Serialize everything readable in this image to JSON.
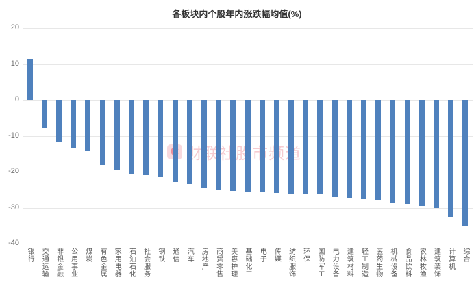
{
  "title": "各板块内个股年内涨跌幅均值(%)",
  "watermark": {
    "logo_letter": "C",
    "text": "财联社股市频道"
  },
  "colors": {
    "bar": "#4f81bd",
    "grid": "#e7e7e7",
    "y_tick_label": "#737373",
    "category_label": "#595959",
    "title": "#333333",
    "watermark_pink": "#e05264"
  },
  "chart_data": {
    "type": "bar",
    "title": "各板块内个股年内涨跌幅均值(%)",
    "xlabel": "",
    "ylabel": "",
    "ylim": [
      -40,
      20
    ],
    "yticks": [
      20,
      10,
      0,
      -10,
      -20,
      -30,
      -40
    ],
    "grid": true,
    "legend": false,
    "bar_color": "#4f81bd",
    "categories": [
      "银行",
      "交通运输",
      "非银金融",
      "公用事业",
      "煤炭",
      "有色金属",
      "家用电器",
      "石油石化",
      "社会服务",
      "钢铁",
      "通信",
      "汽车",
      "房地产",
      "商贸零售",
      "美容护理",
      "基础化工",
      "电子",
      "传媒",
      "纺织服饰",
      "环保",
      "国防军工",
      "电力设备",
      "建筑材料",
      "轻工制造",
      "医药生物",
      "机械设备",
      "食品饮料",
      "农林牧渔",
      "建筑装饰",
      "计算机",
      "综合"
    ],
    "values": [
      11.4,
      -7.9,
      -11.8,
      -13.5,
      -14.3,
      -18.0,
      -19.6,
      -20.7,
      -21.0,
      -21.5,
      -22.8,
      -23.4,
      -24.6,
      -24.9,
      -25.3,
      -25.6,
      -25.7,
      -25.9,
      -26.1,
      -26.1,
      -26.3,
      -27.1,
      -27.4,
      -27.7,
      -28.0,
      -28.7,
      -28.9,
      -29.6,
      -30.1,
      -32.5,
      -35.2
    ]
  }
}
